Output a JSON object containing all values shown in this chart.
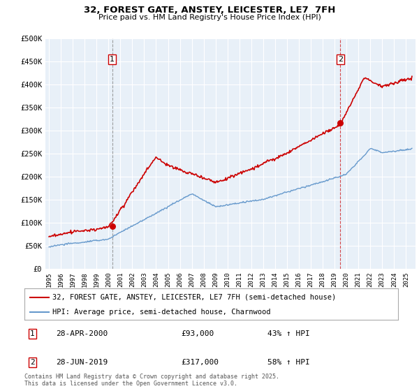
{
  "title": "32, FOREST GATE, ANSTEY, LEICESTER, LE7  7FH",
  "subtitle": "Price paid vs. HM Land Registry's House Price Index (HPI)",
  "ylabel_ticks": [
    0,
    50000,
    100000,
    150000,
    200000,
    250000,
    300000,
    350000,
    400000,
    450000,
    500000
  ],
  "ylabel_labels": [
    "£0",
    "£50K",
    "£100K",
    "£150K",
    "£200K",
    "£250K",
    "£300K",
    "£350K",
    "£400K",
    "£450K",
    "£500K"
  ],
  "ylim": [
    0,
    500000
  ],
  "xlim_start": 1994.7,
  "xlim_end": 2025.8,
  "line1_color": "#cc0000",
  "line2_color": "#6699cc",
  "marker1_x": 2000.32,
  "marker1_y": 93000,
  "marker1_label": "1",
  "marker2_x": 2019.49,
  "marker2_y": 317000,
  "marker2_label": "2",
  "vline1_x": 2000.32,
  "vline2_x": 2019.49,
  "chart_bg": "#e8f0f8",
  "grid_color": "#ffffff",
  "legend_line1": "32, FOREST GATE, ANSTEY, LEICESTER, LE7 7FH (semi-detached house)",
  "legend_line2": "HPI: Average price, semi-detached house, Charnwood",
  "annotation1_num": "1",
  "annotation1_date": "28-APR-2000",
  "annotation1_price": "£93,000",
  "annotation1_hpi": "43% ↑ HPI",
  "annotation2_num": "2",
  "annotation2_date": "28-JUN-2019",
  "annotation2_price": "£317,000",
  "annotation2_hpi": "58% ↑ HPI",
  "footer": "Contains HM Land Registry data © Crown copyright and database right 2025.\nThis data is licensed under the Open Government Licence v3.0.",
  "background_color": "#ffffff"
}
